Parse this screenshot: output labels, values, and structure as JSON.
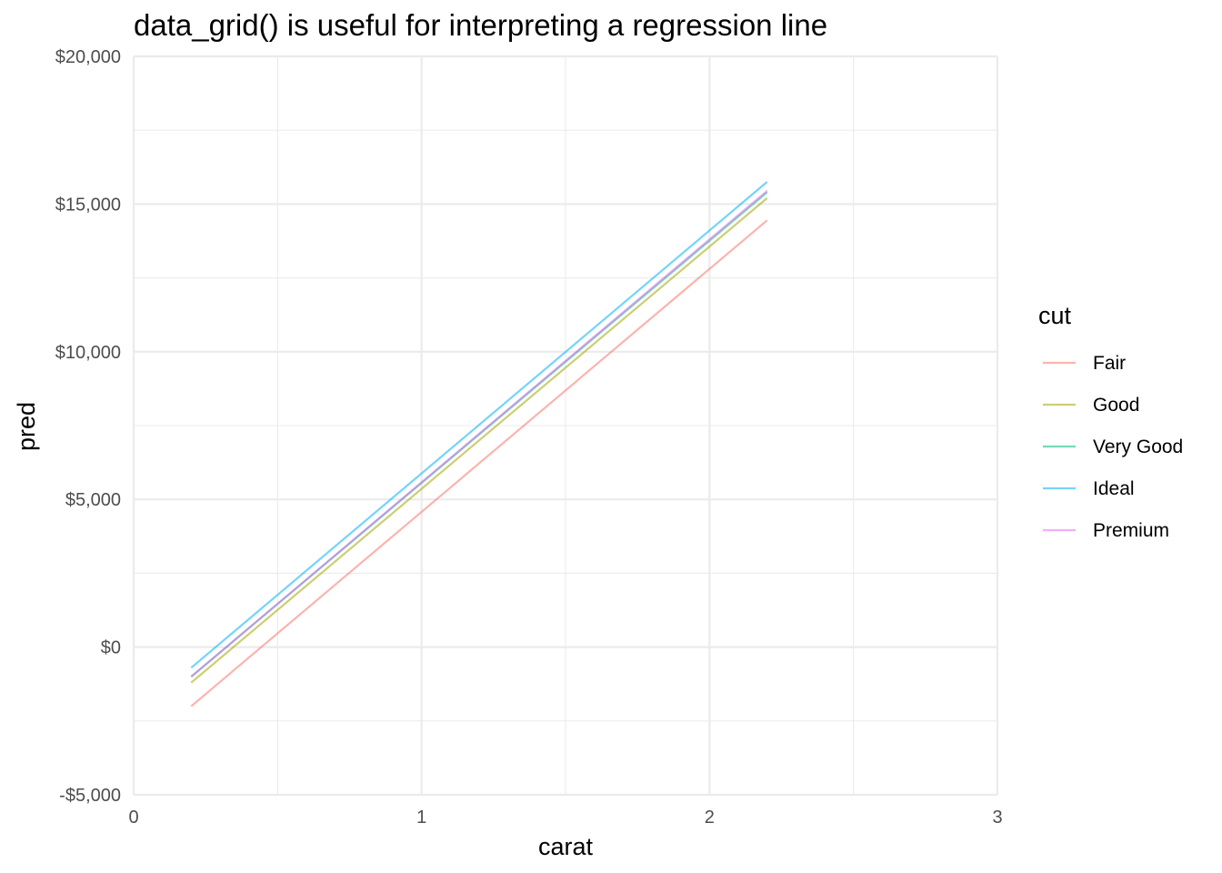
{
  "chart_data": {
    "type": "line",
    "title": "data_grid() is useful for interpreting a regression line",
    "xlabel": "carat",
    "ylabel": "pred",
    "xlim": [
      0,
      3
    ],
    "ylim": [
      -5000,
      20000
    ],
    "x_ticks": [
      0,
      1,
      2,
      3
    ],
    "x_tick_labels": [
      "0",
      "1",
      "2",
      "3"
    ],
    "y_ticks": [
      -5000,
      0,
      5000,
      10000,
      15000,
      20000
    ],
    "y_tick_labels": [
      "-$5,000",
      "$0",
      "$5,000",
      "$10,000",
      "$15,000",
      "$20,000"
    ],
    "grid": true,
    "legend": {
      "title": "cut",
      "position": "right"
    },
    "series": [
      {
        "name": "Fair",
        "color": "#F8766D",
        "x": [
          0.2,
          2.2
        ],
        "y": [
          -2000,
          14450
        ]
      },
      {
        "name": "Good",
        "color": "#A3A500",
        "x": [
          0.2,
          2.2
        ],
        "y": [
          -1200,
          15200
        ]
      },
      {
        "name": "Very Good",
        "color": "#00BF7D",
        "x": [
          0.2,
          2.2
        ],
        "y": [
          -1000,
          15400
        ]
      },
      {
        "name": "Ideal",
        "color": "#00B0F6",
        "x": [
          0.2,
          2.2
        ],
        "y": [
          -700,
          15750
        ]
      },
      {
        "name": "Premium",
        "color": "#E76BF3",
        "x": [
          0.2,
          2.2
        ],
        "y": [
          -1000,
          15450
        ]
      }
    ]
  }
}
